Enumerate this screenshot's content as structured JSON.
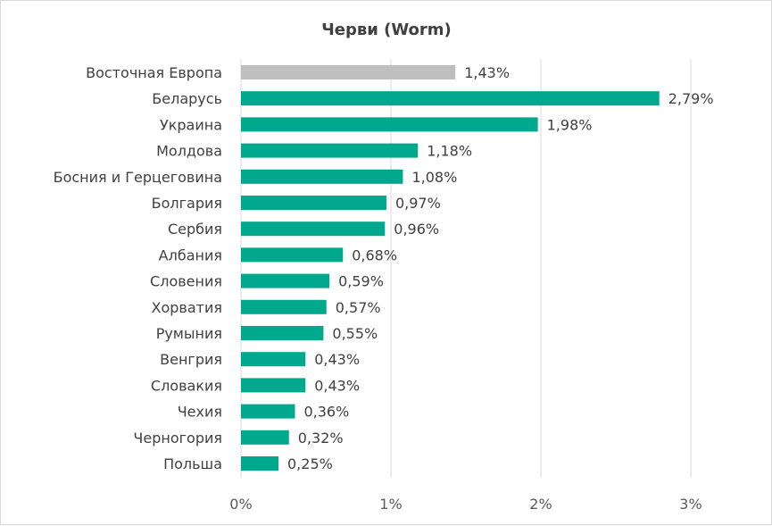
{
  "chart_data": {
    "type": "bar",
    "orientation": "horizontal",
    "title": "Черви (Worm)",
    "categories": [
      "Восточная Европа",
      "Беларусь",
      "Украина",
      "Молдова",
      "Босния и Герцеговина",
      "Болгария",
      "Сербия",
      "Албания",
      "Словения",
      "Хорватия",
      "Румыния",
      "Венгрия",
      "Словакия",
      "Чехия",
      "Черногория",
      "Польша"
    ],
    "values": [
      1.43,
      2.79,
      1.98,
      1.18,
      1.08,
      0.97,
      0.96,
      0.68,
      0.59,
      0.57,
      0.55,
      0.43,
      0.43,
      0.36,
      0.32,
      0.25
    ],
    "value_labels": [
      "1,43%",
      "2,79%",
      "1,98%",
      "1,18%",
      "1,08%",
      "0,97%",
      "0,96%",
      "0,68%",
      "0,59%",
      "0,57%",
      "0,55%",
      "0,43%",
      "0,43%",
      "0,36%",
      "0,32%",
      "0,25%"
    ],
    "xlim": [
      0,
      3
    ],
    "xticks": [
      0,
      1,
      2,
      3
    ],
    "xtick_labels": [
      "0%",
      "1%",
      "2%",
      "3%"
    ],
    "grid": true,
    "legend": "none",
    "colors": {
      "highlight": "#bfbfbf",
      "bar": "#00a88e"
    },
    "highlight_index": 0
  }
}
